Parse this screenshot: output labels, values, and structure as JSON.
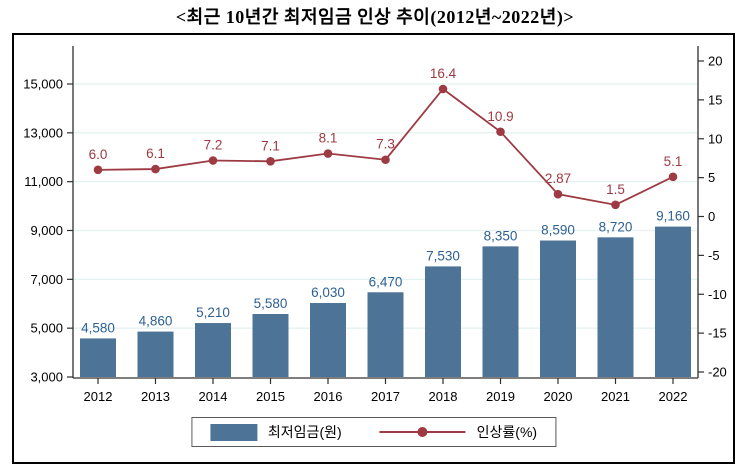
{
  "title": "<최근 10년간 최저임금 인상 추이(2012년~2022년)>",
  "chart_data": {
    "type": "bar+line",
    "title": "<최근 10년간 최저임금 인상 추이(2012년~2022년)>",
    "categories": [
      "2012",
      "2013",
      "2014",
      "2015",
      "2016",
      "2017",
      "2018",
      "2019",
      "2020",
      "2021",
      "2022"
    ],
    "series": [
      {
        "name": "최저임금(원)",
        "type": "bar",
        "axis": "left",
        "color": "#4d7396",
        "label_color": "#2e6095",
        "values": [
          4580,
          4860,
          5210,
          5580,
          6030,
          6470,
          7530,
          8350,
          8590,
          8720,
          9160
        ],
        "labels": [
          "4,580",
          "4,860",
          "5,210",
          "5,580",
          "6,030",
          "6,470",
          "7,530",
          "8,350",
          "8,590",
          "8,720",
          "9,160"
        ]
      },
      {
        "name": "인상률(%)",
        "type": "line",
        "axis": "right",
        "color": "#9e3a43",
        "label_color": "#9e3a43",
        "values": [
          6.0,
          6.1,
          7.2,
          7.1,
          8.1,
          7.3,
          16.4,
          10.9,
          2.87,
          1.5,
          5.1
        ],
        "labels": [
          "6.0",
          "6.1",
          "7.2",
          "7.1",
          "8.1",
          "7.3",
          "16.4",
          "10.9",
          "2.87",
          "1.5",
          "5.1"
        ]
      }
    ],
    "left_axis": {
      "min": 3000,
      "max": 15000,
      "ticks": [
        3000,
        5000,
        7000,
        9000,
        11000,
        13000,
        15000
      ],
      "tick_labels": [
        "3,000",
        "5,000",
        "7,000",
        "9,000",
        "11,000",
        "13,000",
        "15,000"
      ]
    },
    "right_axis": {
      "min": -20,
      "max": 20,
      "ticks": [
        20,
        15,
        10,
        5,
        0,
        -5,
        -10,
        -15,
        -20
      ],
      "tick_labels": [
        "20",
        "15",
        "10",
        "5",
        "0",
        "-5",
        "-10",
        "-15",
        "-20"
      ]
    },
    "grid": {
      "show": true,
      "color": "#e4f2f1"
    },
    "axis_color": "#303030",
    "frame_color": "#000000",
    "legend_position": "bottom-center"
  },
  "legend": {
    "items": [
      {
        "label": "최저임금(원)",
        "swatch": "bar-swatch"
      },
      {
        "label": "인상률(%)",
        "swatch": "line-swatch"
      }
    ]
  }
}
